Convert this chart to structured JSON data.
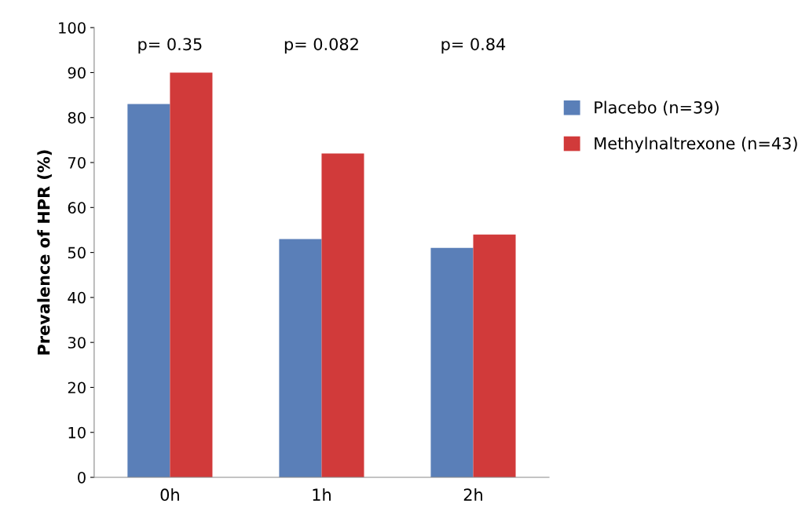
{
  "chart_data": {
    "type": "bar",
    "ylabel": "Prevalence of HPR (%)",
    "categories": [
      "0h",
      "1h",
      "2h"
    ],
    "series": [
      {
        "name": "Placebo (n=39)",
        "color": "#5a7fb8",
        "values": [
          83,
          53,
          51
        ]
      },
      {
        "name": "Methylnaltrexone (n=43)",
        "color": "#d13a3a",
        "values": [
          90,
          72,
          54
        ]
      }
    ],
    "ylim": [
      0,
      100
    ],
    "yticks": [
      0,
      10,
      20,
      30,
      40,
      50,
      60,
      70,
      80,
      90,
      100
    ],
    "grid": false,
    "legend": "right",
    "annotations": [
      "p= 0.35",
      "p= 0.082",
      "p= 0.84"
    ]
  }
}
